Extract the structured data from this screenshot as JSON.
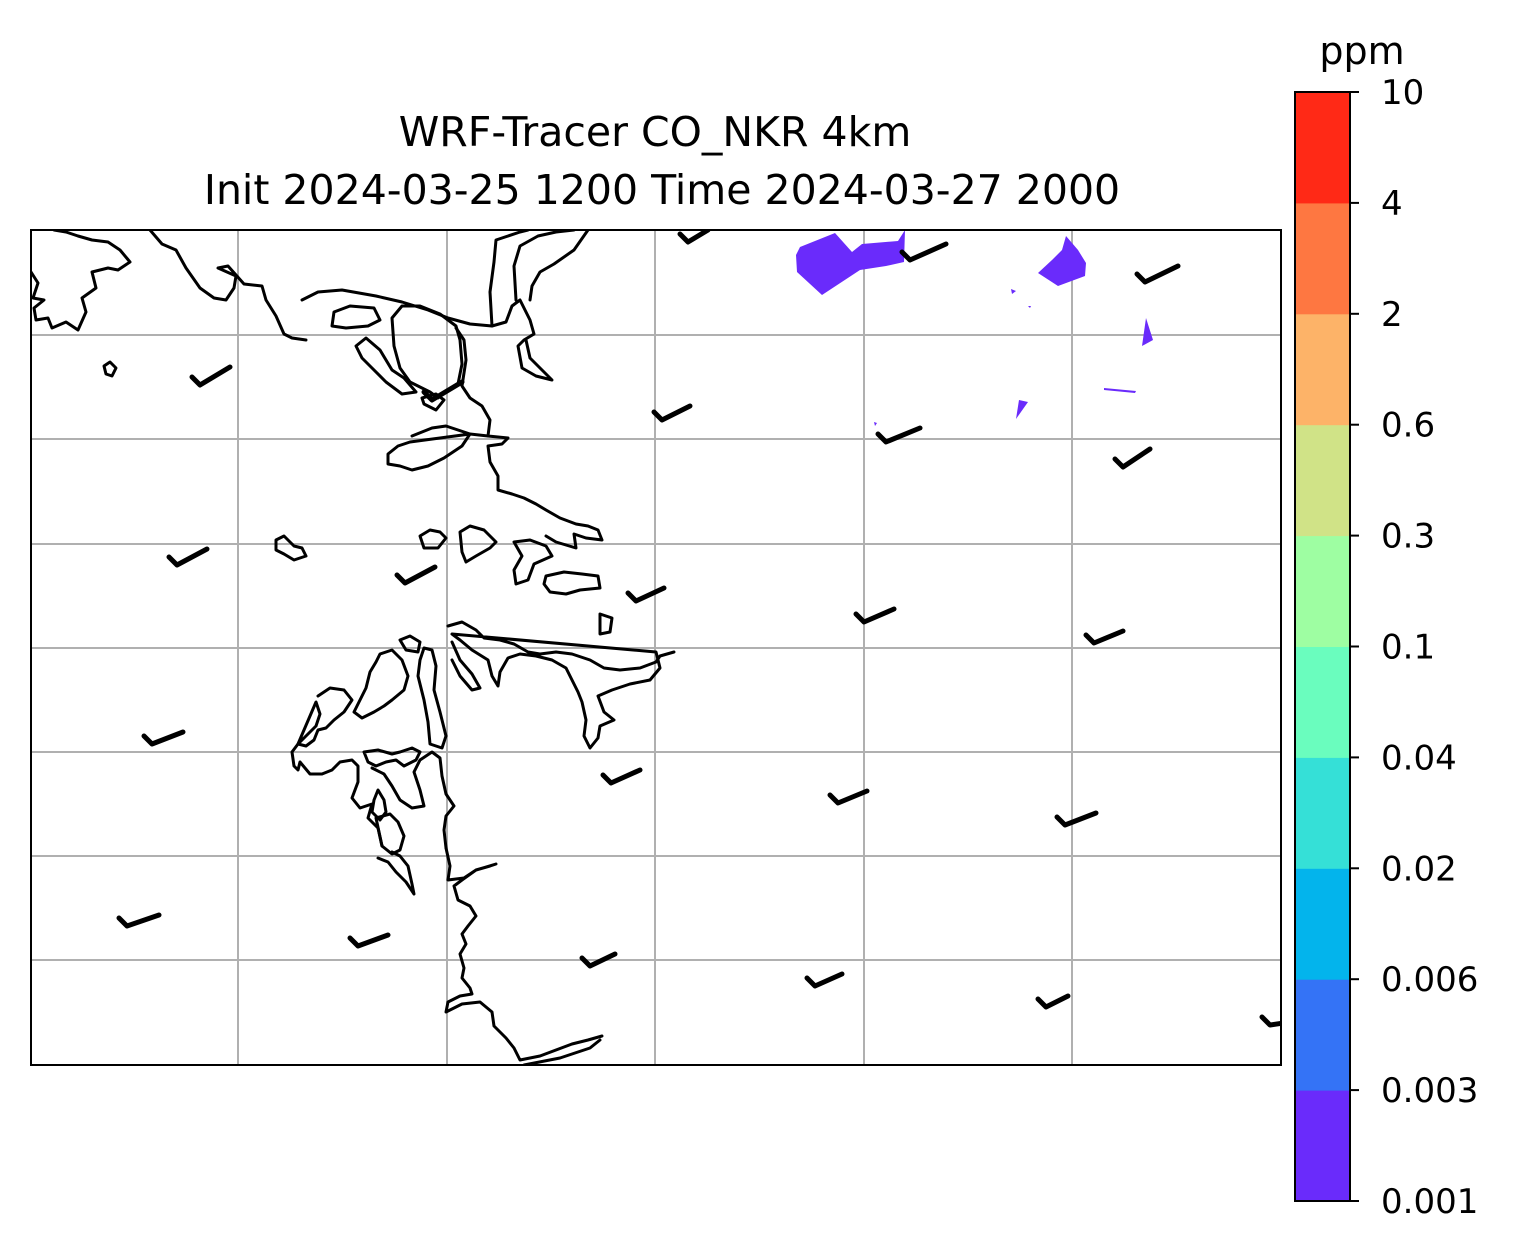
{
  "title": {
    "line1": "WRF-Tracer CO_NKR 4km",
    "line2": "Init 2024-03-25 1200 Time 2024-03-27 2000"
  },
  "colorbar": {
    "unit": "ppm",
    "levels": [
      "0.001",
      "0.003",
      "0.006",
      "0.02",
      "0.04",
      "0.1",
      "0.3",
      "0.6",
      "2",
      "4",
      "10"
    ],
    "colors": [
      "#6a2bfb",
      "#3473f6",
      "#03b4ec",
      "#35e0d7",
      "#6afdbe",
      "#9efea2",
      "#d0e387",
      "#fdb368",
      "#fe7741",
      "#ff2916"
    ]
  },
  "map": {
    "gridlines": true,
    "gridline_color": "#b0b0b0",
    "coastline_color": "#000000",
    "plume_color": "#6a2bfb",
    "plume_concentration_range_ppm": [
      "0.001",
      "0.003"
    ],
    "wind_barb_color": "#000000"
  }
}
